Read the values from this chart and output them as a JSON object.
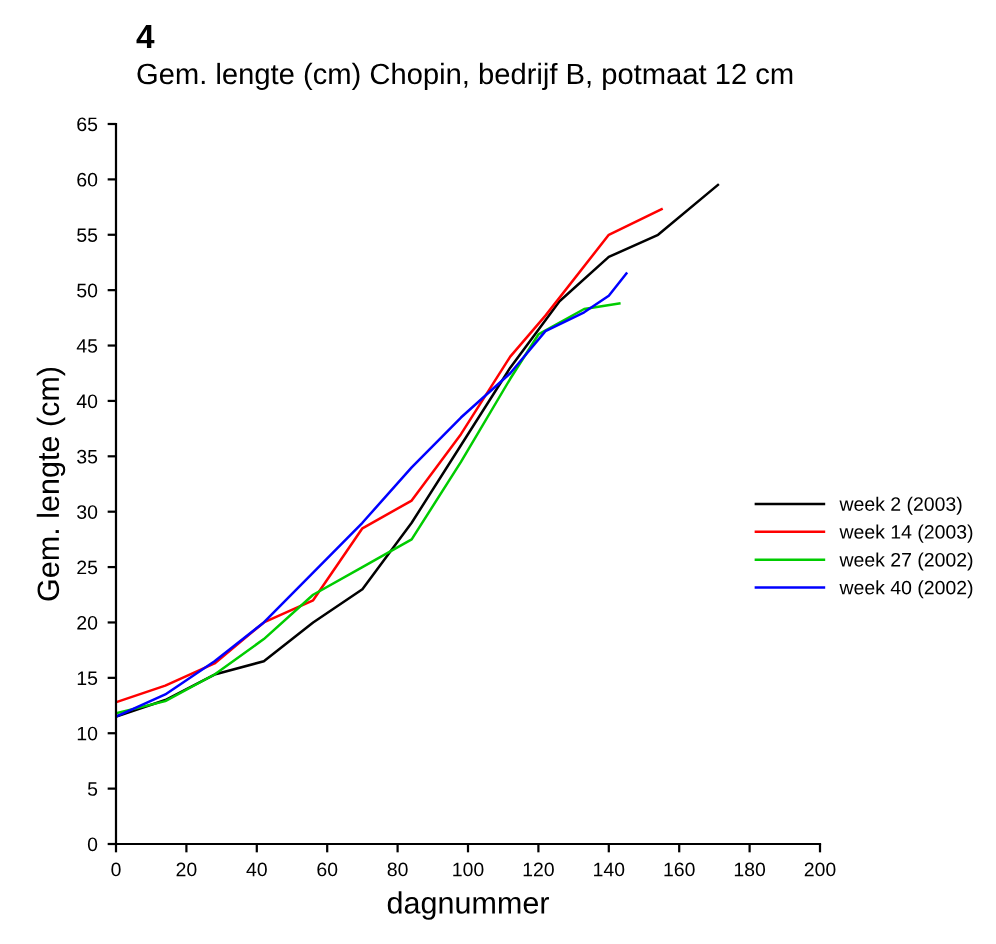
{
  "chart_data": {
    "type": "line",
    "title": "Gem. lengte (cm) Chopin, bedrijf B, potmaat 12 cm",
    "annotations": [
      "4"
    ],
    "xlabel": "dagnummer",
    "ylabel": "Gem. lengte (cm)",
    "xlim": [
      0,
      200
    ],
    "xticks": [
      0,
      20,
      40,
      60,
      80,
      100,
      120,
      140,
      160,
      180,
      200
    ],
    "ylim": [
      0,
      65
    ],
    "yticks": [
      0,
      5,
      10,
      15,
      20,
      25,
      30,
      35,
      40,
      45,
      50,
      55,
      60,
      65
    ],
    "grid": false,
    "legend": "right",
    "marker": "none",
    "line_style": "solid",
    "series": [
      {
        "name": "week 2 (2003)",
        "color": "#000000",
        "x": [
          0,
          14,
          28,
          42,
          56,
          70,
          84,
          98,
          112,
          126,
          140,
          154,
          171
        ],
        "values": [
          11.5,
          13,
          15.3,
          16.5,
          20,
          23,
          29,
          36,
          43,
          49,
          53,
          55,
          59.5
        ]
      },
      {
        "name": "week 14 (2003)",
        "color": "#ff0000",
        "x": [
          0,
          14,
          28,
          42,
          56,
          70,
          84,
          98,
          112,
          122,
          140,
          155
        ],
        "values": [
          12.8,
          14.3,
          16.3,
          20,
          22,
          28.5,
          31,
          37,
          44,
          47.7,
          55,
          57.3
        ]
      },
      {
        "name": "week 27 (2002)",
        "color": "#00cc00",
        "x": [
          0,
          14,
          28,
          42,
          56,
          70,
          84,
          98,
          112,
          120,
          133,
          143
        ],
        "values": [
          11.8,
          12.9,
          15.3,
          18.5,
          22.5,
          25,
          27.5,
          34.5,
          42,
          46,
          48.3,
          48.8
        ]
      },
      {
        "name": "week 40 (2002)",
        "color": "#0000ff",
        "x": [
          0,
          14,
          28,
          42,
          56,
          70,
          84,
          98,
          112,
          122,
          133,
          140,
          145
        ],
        "values": [
          11.5,
          13.5,
          16.5,
          20,
          24.5,
          29,
          34,
          38.5,
          42.5,
          46.3,
          48,
          49.5,
          51.5
        ]
      }
    ]
  }
}
